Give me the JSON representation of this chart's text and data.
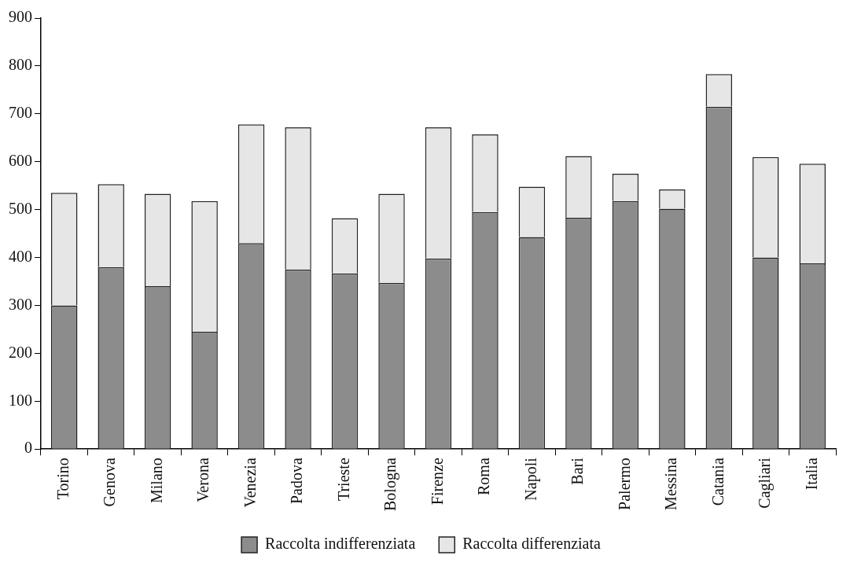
{
  "chart_data": {
    "type": "bar",
    "stacked": true,
    "categories": [
      "Torino",
      "Genova",
      "Milano",
      "Verona",
      "Venezia",
      "Padova",
      "Trieste",
      "Bologna",
      "Firenze",
      "Roma",
      "Napoli",
      "Bari",
      "Palermo",
      "Messina",
      "Catania",
      "Cagliari",
      "Italia"
    ],
    "series": [
      {
        "name": "Raccolta indifferenziata",
        "color": "#8c8c8c",
        "values": [
          300,
          380,
          340,
          245,
          430,
          375,
          367,
          347,
          398,
          495,
          443,
          483,
          518,
          502,
          715,
          400,
          388
        ]
      },
      {
        "name": "Raccolta differenziata",
        "color": "#e6e6e6",
        "values": [
          235,
          173,
          193,
          273,
          248,
          297,
          115,
          186,
          274,
          162,
          105,
          129,
          57,
          40,
          68,
          210,
          208
        ]
      }
    ],
    "ylim": [
      0,
      900
    ],
    "yticks": [
      0,
      100,
      200,
      300,
      400,
      500,
      600,
      700,
      800,
      900
    ],
    "grid": false,
    "legend": "bottom"
  }
}
